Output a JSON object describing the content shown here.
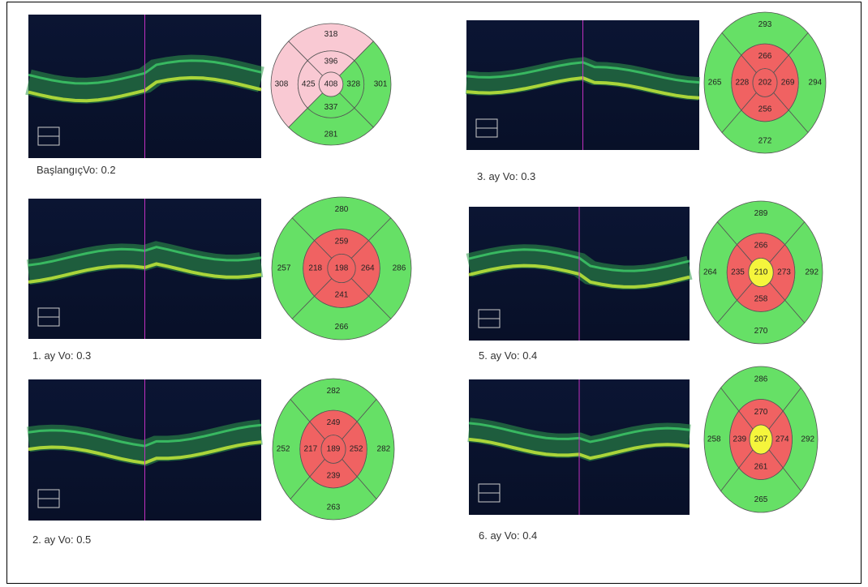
{
  "panels": [
    {
      "caption": "BaşlangıçVo: 0.2",
      "center": {
        "value": 408,
        "color": "#f9c9d3"
      },
      "inner": [
        {
          "value": 396,
          "color": "#f9c9d3"
        },
        {
          "value": 328,
          "color": "#66e066"
        },
        {
          "value": 337,
          "color": "#66e066"
        },
        {
          "value": 425,
          "color": "#f9c9d3"
        }
      ],
      "outer": [
        {
          "value": 318,
          "color": "#f9c9d3"
        },
        {
          "value": 301,
          "color": "#66e066"
        },
        {
          "value": 281,
          "color": "#66e066"
        },
        {
          "value": 308,
          "color": "#f9c9d3"
        }
      ]
    },
    {
      "caption": "3. ay Vo: 0.3",
      "center": {
        "value": 202,
        "color": "#f06262"
      },
      "inner": [
        {
          "value": 266,
          "color": "#f06262"
        },
        {
          "value": 269,
          "color": "#f06262"
        },
        {
          "value": 256,
          "color": "#f06262"
        },
        {
          "value": 228,
          "color": "#f06262"
        }
      ],
      "outer": [
        {
          "value": 293,
          "color": "#66e066"
        },
        {
          "value": 294,
          "color": "#66e066"
        },
        {
          "value": 272,
          "color": "#66e066"
        },
        {
          "value": 265,
          "color": "#66e066"
        }
      ]
    },
    {
      "caption": "1. ay Vo: 0.3",
      "center": {
        "value": 198,
        "color": "#f06262"
      },
      "inner": [
        {
          "value": 259,
          "color": "#f06262"
        },
        {
          "value": 264,
          "color": "#f06262"
        },
        {
          "value": 241,
          "color": "#f06262"
        },
        {
          "value": 218,
          "color": "#f06262"
        }
      ],
      "outer": [
        {
          "value": 280,
          "color": "#66e066"
        },
        {
          "value": 286,
          "color": "#66e066"
        },
        {
          "value": 266,
          "color": "#66e066"
        },
        {
          "value": 257,
          "color": "#66e066"
        }
      ]
    },
    {
      "caption": "5. ay Vo: 0.4",
      "center": {
        "value": 210,
        "color": "#f5f53c"
      },
      "inner": [
        {
          "value": 266,
          "color": "#f06262"
        },
        {
          "value": 273,
          "color": "#f06262"
        },
        {
          "value": 258,
          "color": "#f06262"
        },
        {
          "value": 235,
          "color": "#f06262"
        }
      ],
      "outer": [
        {
          "value": 289,
          "color": "#66e066"
        },
        {
          "value": 292,
          "color": "#66e066"
        },
        {
          "value": 270,
          "color": "#66e066"
        },
        {
          "value": 264,
          "color": "#66e066"
        }
      ]
    },
    {
      "caption": "2. ay Vo: 0.5",
      "center": {
        "value": 189,
        "color": "#f06262"
      },
      "inner": [
        {
          "value": 249,
          "color": "#f06262"
        },
        {
          "value": 252,
          "color": "#f06262"
        },
        {
          "value": 239,
          "color": "#f06262"
        },
        {
          "value": 217,
          "color": "#f06262"
        }
      ],
      "outer": [
        {
          "value": 282,
          "color": "#66e066"
        },
        {
          "value": 282,
          "color": "#66e066"
        },
        {
          "value": 263,
          "color": "#66e066"
        },
        {
          "value": 252,
          "color": "#66e066"
        }
      ]
    },
    {
      "caption": "6. ay Vo: 0.4",
      "center": {
        "value": 207,
        "color": "#f5f53c"
      },
      "inner": [
        {
          "value": 270,
          "color": "#f06262"
        },
        {
          "value": 274,
          "color": "#f06262"
        },
        {
          "value": 261,
          "color": "#f06262"
        },
        {
          "value": 239,
          "color": "#f06262"
        }
      ],
      "outer": [
        {
          "value": 286,
          "color": "#66e066"
        },
        {
          "value": 292,
          "color": "#66e066"
        },
        {
          "value": 265,
          "color": "#66e066"
        },
        {
          "value": 258,
          "color": "#66e066"
        }
      ]
    }
  ]
}
